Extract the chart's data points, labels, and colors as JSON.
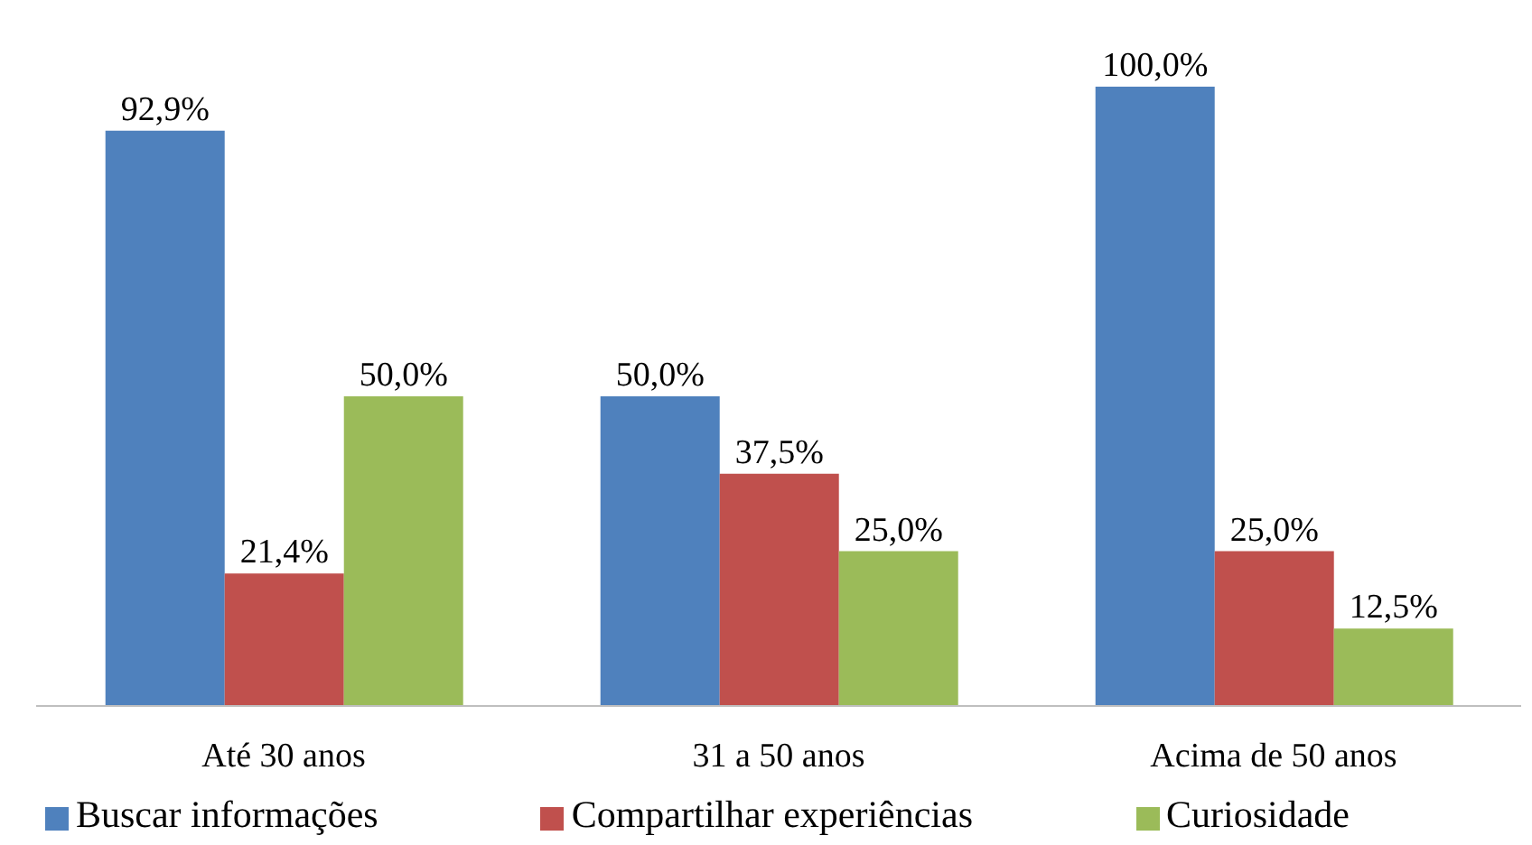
{
  "chart_data": {
    "type": "bar",
    "categories": [
      "Até 30 anos",
      "31 a 50 anos",
      "Acima de 50 anos"
    ],
    "series": [
      {
        "name": "Buscar informações",
        "color": "#4f81bd",
        "values": [
          92.9,
          50.0,
          100.0
        ],
        "value_labels": [
          "92,9%",
          "50,0%",
          "100,0%"
        ]
      },
      {
        "name": "Compartilhar experiências",
        "color": "#c0504d",
        "values": [
          21.4,
          37.5,
          25.0
        ],
        "value_labels": [
          "21,4%",
          "37,5%",
          "25,0%"
        ]
      },
      {
        "name": "Curiosidade",
        "color": "#9bbb59",
        "values": [
          50.0,
          25.0,
          12.5
        ],
        "value_labels": [
          "50,0%",
          "25,0%",
          "12,5%"
        ]
      }
    ],
    "legend": "bottom",
    "grid": false
  }
}
